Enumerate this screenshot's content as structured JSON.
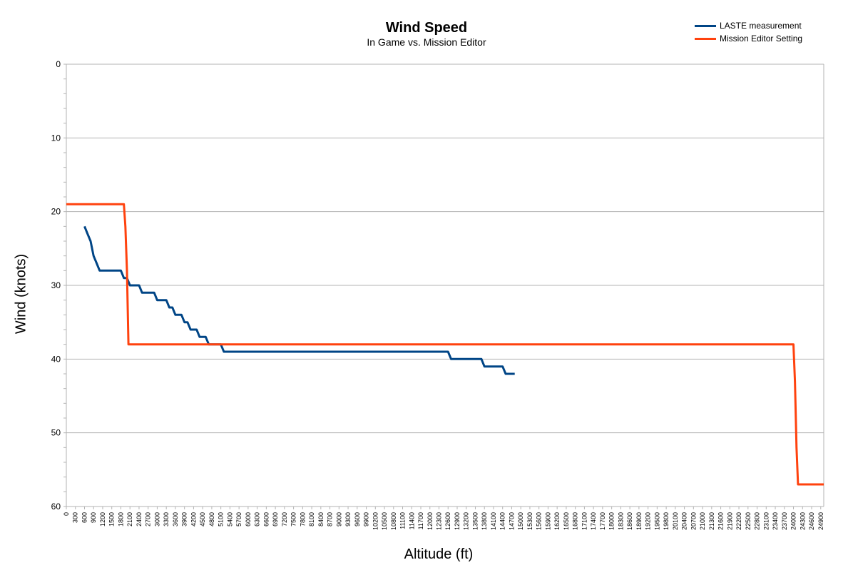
{
  "chart_data": {
    "type": "line",
    "title": "Wind Speed",
    "subtitle": "In Game vs. Mission Editor",
    "xlabel": "Altitude (ft)",
    "ylabel": "Wind (knots)",
    "xlim": [
      0,
      25000
    ],
    "ylim": [
      0,
      60
    ],
    "y_inverted": true,
    "y_ticks": [
      0,
      10,
      20,
      30,
      40,
      50,
      60
    ],
    "x_tick_step": 300,
    "grid": "horizontal",
    "legend_position": "top-right",
    "series": [
      {
        "name": "LASTE measurement",
        "color": "#004586",
        "points": [
          [
            600,
            22
          ],
          [
            700,
            23
          ],
          [
            800,
            24
          ],
          [
            900,
            26
          ],
          [
            1000,
            27
          ],
          [
            1100,
            28
          ],
          [
            1200,
            28
          ],
          [
            1800,
            28
          ],
          [
            1900,
            29
          ],
          [
            2000,
            29
          ],
          [
            2100,
            30
          ],
          [
            2400,
            30
          ],
          [
            2500,
            31
          ],
          [
            2900,
            31
          ],
          [
            3000,
            32
          ],
          [
            3300,
            32
          ],
          [
            3400,
            33
          ],
          [
            3500,
            33
          ],
          [
            3600,
            34
          ],
          [
            3800,
            34
          ],
          [
            3900,
            35
          ],
          [
            4000,
            35
          ],
          [
            4100,
            36
          ],
          [
            4300,
            36
          ],
          [
            4400,
            37
          ],
          [
            4600,
            37
          ],
          [
            4700,
            38
          ],
          [
            5100,
            38
          ],
          [
            5200,
            39
          ],
          [
            12600,
            39
          ],
          [
            12700,
            40
          ],
          [
            13700,
            40
          ],
          [
            13800,
            41
          ],
          [
            14400,
            41
          ],
          [
            14500,
            42
          ],
          [
            14800,
            42
          ]
        ]
      },
      {
        "name": "Mission Editor Setting",
        "color": "#ff420e",
        "points": [
          [
            0,
            19
          ],
          [
            1900,
            19
          ],
          [
            1950,
            22
          ],
          [
            2000,
            28
          ],
          [
            2050,
            38
          ],
          [
            24000,
            38
          ],
          [
            24050,
            43
          ],
          [
            24100,
            52
          ],
          [
            24150,
            57
          ],
          [
            25000,
            57
          ]
        ]
      }
    ]
  }
}
